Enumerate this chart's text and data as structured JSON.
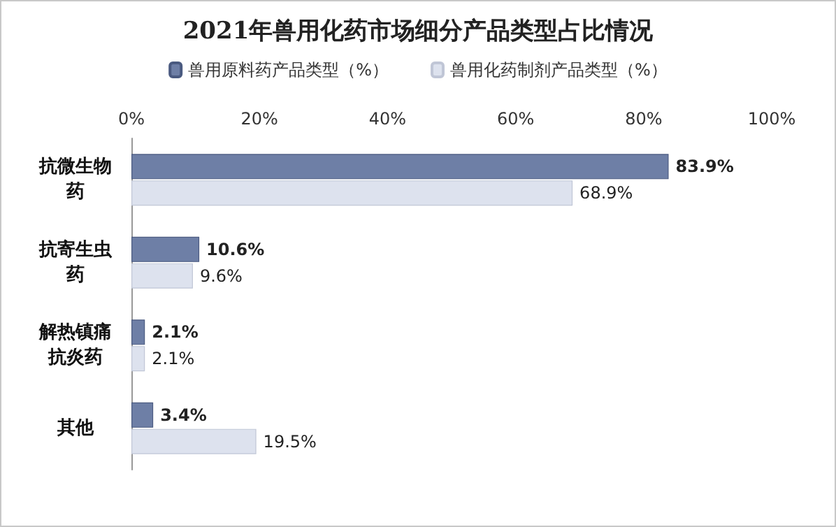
{
  "chart_data": {
    "type": "bar",
    "orientation": "horizontal",
    "title": "2021年兽用化药市场细分产品类型占比情况",
    "categories": [
      "抗微生物药",
      "抗寄生虫药",
      "解热镇痛抗炎药",
      "其他"
    ],
    "series": [
      {
        "name": "兽用原料药产品类型（%）",
        "color": "#6e7fa6",
        "values": [
          83.9,
          10.6,
          2.1,
          3.4
        ],
        "value_labels": [
          "83.9%",
          "10.6%",
          "2.1%",
          "3.4%"
        ]
      },
      {
        "name": "兽用化药制剂产品类型（%）",
        "color": "#dde2ee",
        "values": [
          68.9,
          9.6,
          2.1,
          19.5
        ],
        "value_labels": [
          "68.9%",
          "9.6%",
          "2.1%",
          "19.5%"
        ]
      }
    ],
    "xlim": [
      0,
      100
    ],
    "xticks": [
      {
        "value": 0,
        "label": "0%"
      },
      {
        "value": 20,
        "label": "20%"
      },
      {
        "value": 40,
        "label": "40%"
      },
      {
        "value": 60,
        "label": "60%"
      },
      {
        "value": 80,
        "label": "80%"
      },
      {
        "value": 100,
        "label": "100%"
      }
    ],
    "grid": false,
    "legend": "top"
  }
}
